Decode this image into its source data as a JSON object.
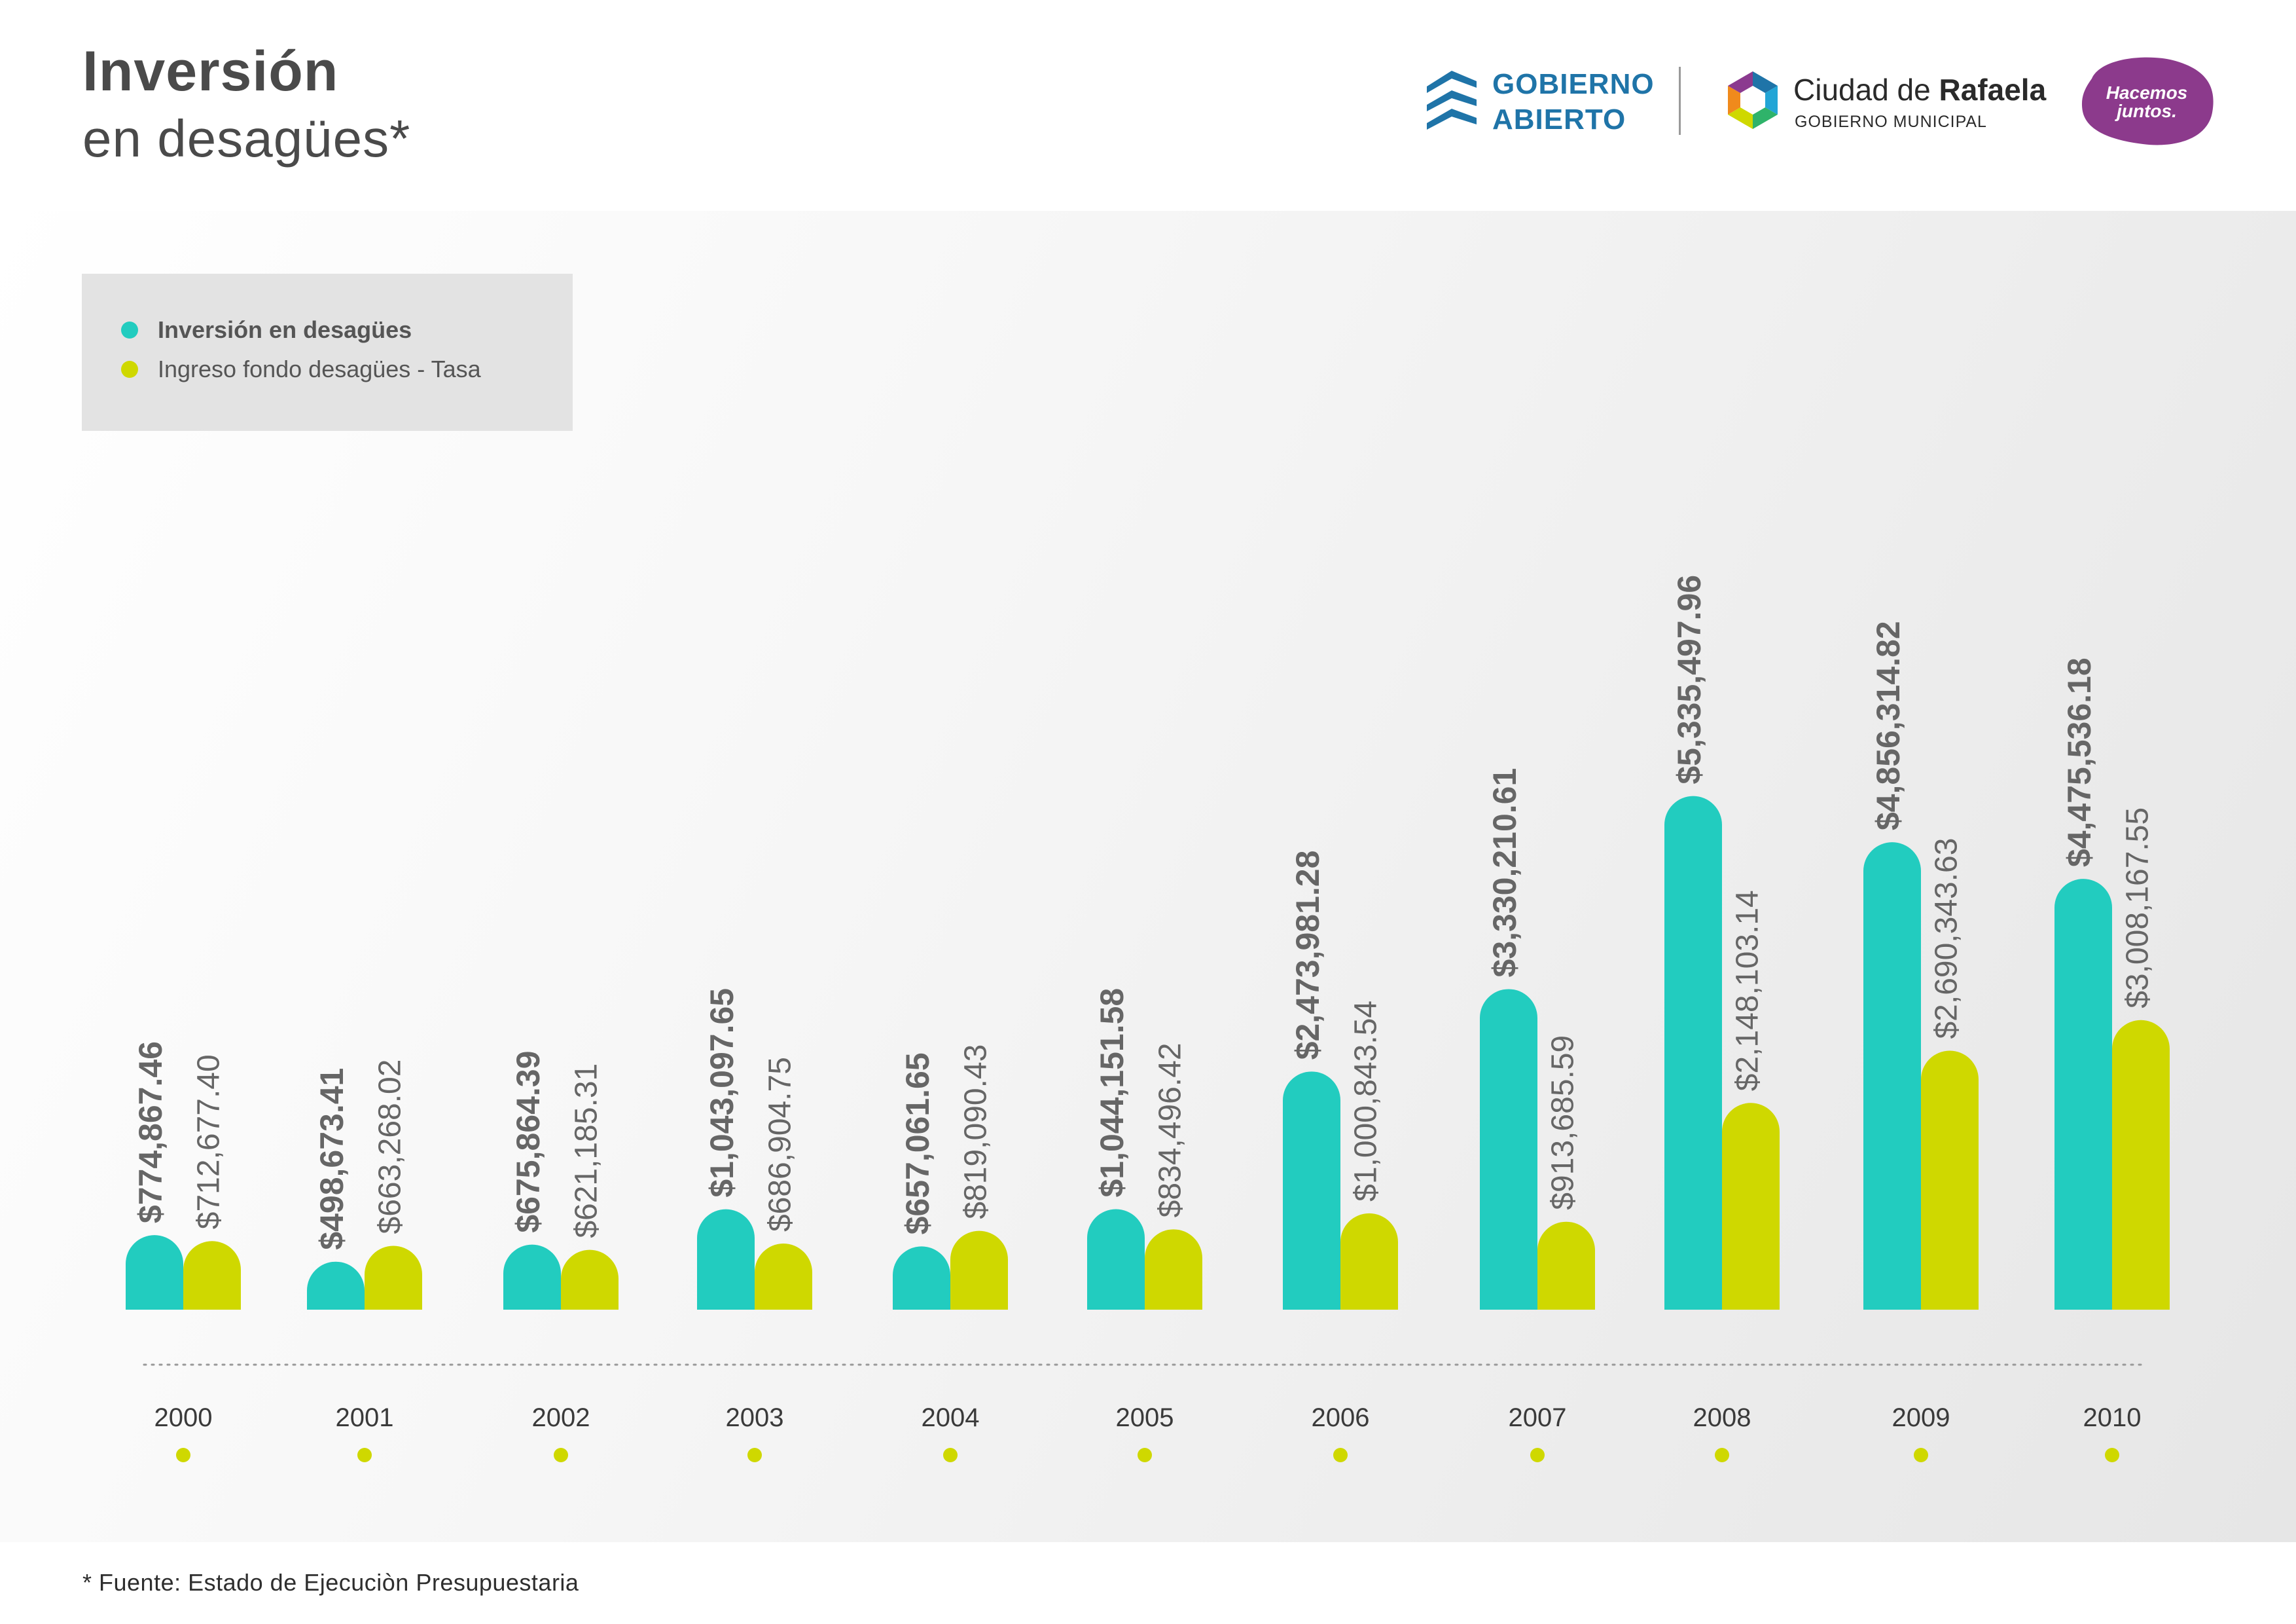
{
  "title": {
    "line1": "Inversión",
    "line2": "en desagües*"
  },
  "logos": {
    "gobierno_abierto": {
      "line1": "GOBIERNO",
      "line2": "ABIERTO",
      "icon": "layered-chevrons-icon"
    },
    "rafaela": {
      "name_regular": "Ciudad de ",
      "name_bold": "Rafaela",
      "subtitle": "GOBIERNO MUNICIPAL",
      "icon": "hexagon-ring-icon"
    },
    "hacemos": {
      "line1": "Hacemos",
      "line2": "juntos.",
      "icon": "purple-blob-badge"
    }
  },
  "colors": {
    "inversion": "#22ccbf",
    "ingreso": "#cfd800",
    "value_text": "#666666",
    "axis_dots": "#999999"
  },
  "footnote": "* Fuente: Estado de Ejecuciòn Presupuestaria",
  "chart_data": {
    "type": "bar",
    "title": "Inversión en desagües*",
    "legend_position": "top-left",
    "grid": false,
    "categories": [
      "2000",
      "2001",
      "2002",
      "2003",
      "2004",
      "2005",
      "2006",
      "2007",
      "2008",
      "2009",
      "2010"
    ],
    "series": [
      {
        "name": "Inversión en desagües",
        "color": "#22ccbf",
        "values": [
          774867.46,
          498673.41,
          675864.39,
          1043097.65,
          657061.65,
          1044151.58,
          2473981.28,
          3330210.61,
          5335497.96,
          4856314.82,
          4475536.18
        ],
        "labels": [
          "$774,867.46",
          "$498,673.41",
          "$675,864.39",
          "$1,043,097.65",
          "$657,061.65",
          "$1,044,151.58",
          "$2,473,981.28",
          "$3,330,210.61",
          "$5,335,497.96",
          "$4,856,314.82",
          "$4,475,536.18"
        ]
      },
      {
        "name": "Ingreso fondo desagües - Tasa",
        "color": "#cfd800",
        "values": [
          712677.4,
          663268.02,
          621185.31,
          686904.75,
          819090.43,
          834496.42,
          1000843.54,
          913685.59,
          2148103.14,
          2690343.63,
          3008167.55
        ],
        "labels": [
          "$712,677.40",
          "$663,268.02",
          "$621,185.31",
          "$686,904.75",
          "$819,090.43",
          "$834,496.42",
          "$1,000,843.54",
          "$913,685.59",
          "$2,148,103.14",
          "$2,690,343.63",
          "$3,008,167.55"
        ]
      }
    ]
  }
}
